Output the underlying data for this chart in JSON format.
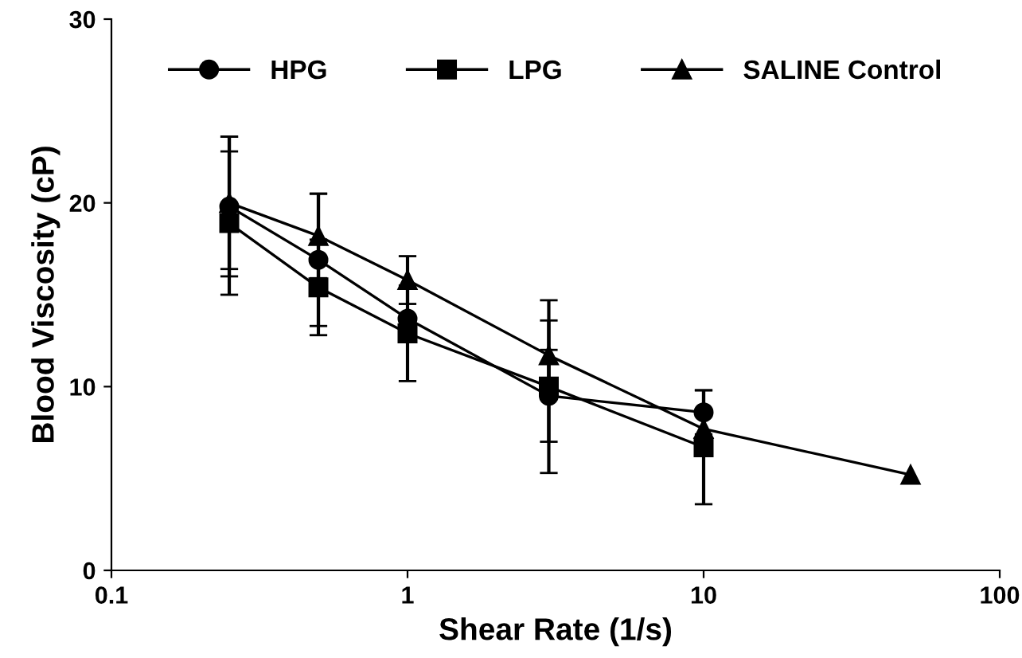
{
  "chart_data": {
    "type": "line",
    "xlabel": "Shear Rate (1/s)",
    "ylabel": "Blood Viscosity (cP)",
    "log": "x",
    "xlim": [
      0.1,
      100
    ],
    "xticks": [
      0.1,
      1,
      10,
      100
    ],
    "ylim": [
      0,
      30
    ],
    "yticks": [
      0,
      10,
      20,
      30
    ],
    "grid": false,
    "legend": "top",
    "line_style": "solid",
    "series": [
      {
        "name": "HPG",
        "color": "#000000",
        "marker": "circle",
        "x": [
          0.25,
          0.5,
          1,
          3,
          10
        ],
        "values": [
          19.8,
          16.9,
          13.7,
          9.5,
          8.6
        ],
        "errors": [
          3.8,
          3.6,
          null,
          2.5,
          1.2
        ]
      },
      {
        "name": "LPG",
        "color": "#000000",
        "marker": "square",
        "x": [
          0.25,
          0.5,
          1,
          3,
          10
        ],
        "values": [
          18.9,
          15.4,
          12.9,
          10.0,
          6.7
        ],
        "errors": [
          3.9,
          2.6,
          2.6,
          4.7,
          3.1
        ]
      },
      {
        "name": "SALINE Control",
        "color": "#000000",
        "marker": "triangle",
        "x": [
          0.25,
          0.5,
          1,
          3,
          10,
          50
        ],
        "values": [
          20.0,
          18.2,
          15.8,
          11.7,
          7.7,
          5.2
        ],
        "errors": [
          3.6,
          2.3,
          1.3,
          1.9,
          null,
          null
        ]
      }
    ]
  }
}
